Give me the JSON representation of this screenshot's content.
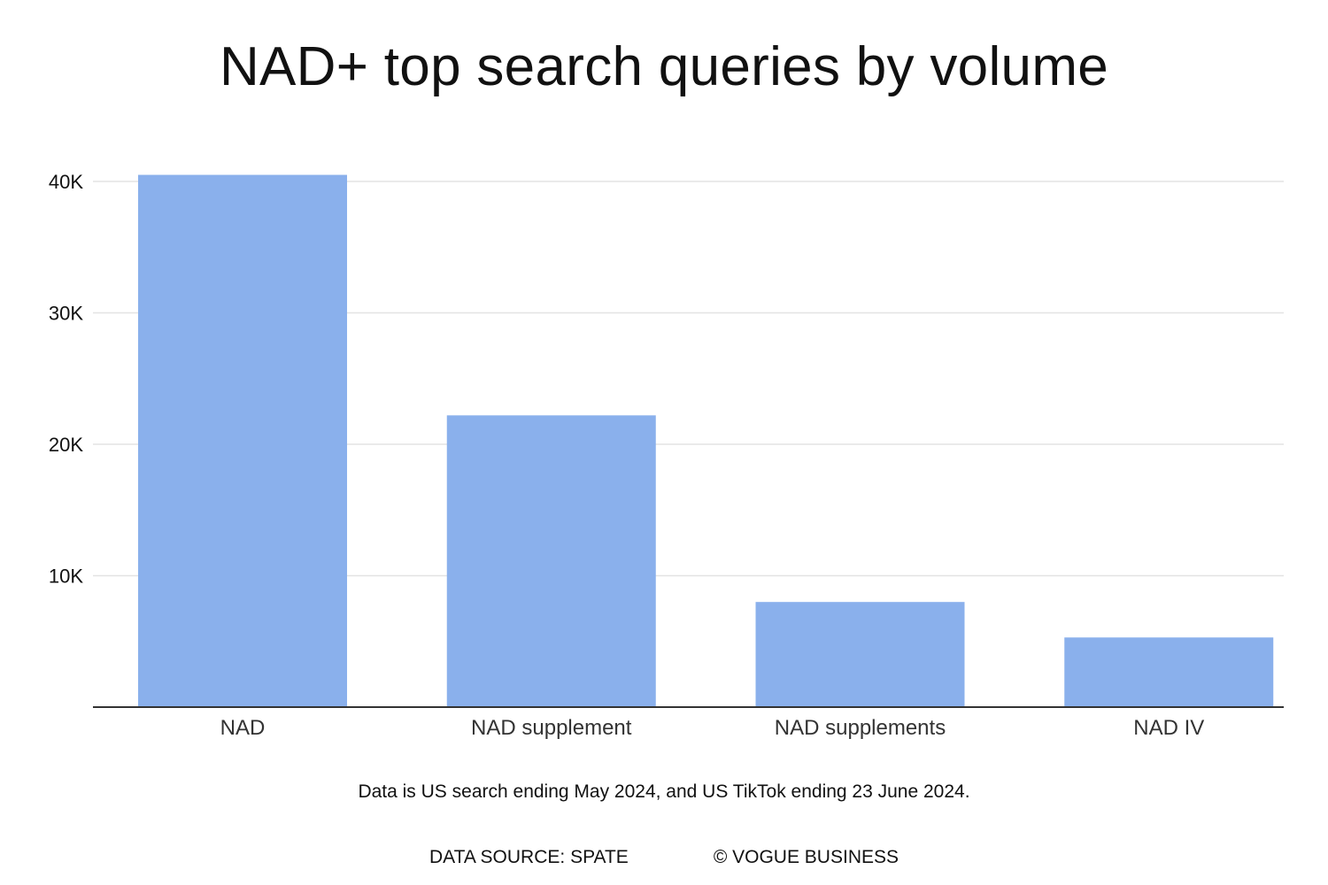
{
  "chart_data": {
    "type": "bar",
    "title": "NAD+ top search queries by volume",
    "categories": [
      "NAD",
      "NAD supplement",
      "NAD supplements",
      "NAD IV"
    ],
    "values": [
      40500,
      22200,
      8000,
      5300
    ],
    "ylim": [
      0,
      40000
    ],
    "yticks": [
      10000,
      20000,
      30000,
      40000
    ],
    "ytick_labels": [
      "10K",
      "20K",
      "30K",
      "40K"
    ],
    "xlabel": "",
    "ylabel": "",
    "grid": true,
    "legend": "none",
    "bar_color": "#8ab0ec"
  },
  "note": "Data is US search ending May 2024, and US TikTok ending 23 June 2024.",
  "footer": {
    "source": "DATA SOURCE: SPATE",
    "credit": "© VOGUE BUSINESS"
  }
}
